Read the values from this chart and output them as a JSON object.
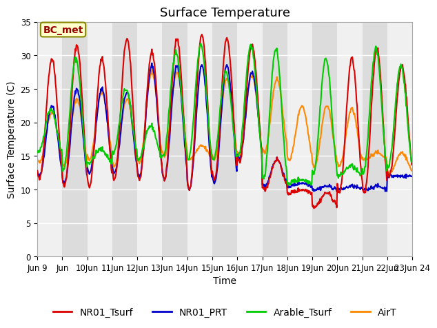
{
  "title": "Surface Temperature",
  "ylabel": "Surface Temperature (C)",
  "xlabel": "Time",
  "ylim": [
    0,
    35
  ],
  "background_color": "#ffffff",
  "plot_bg_light": "#f0f0f0",
  "plot_bg_dark": "#dcdcdc",
  "grid_color": "#ffffff",
  "annotation_text": "BC_met",
  "annotation_bg": "#ffffcc",
  "annotation_border": "#888800",
  "annotation_text_color": "#990000",
  "series": {
    "NR01_Tsurf": {
      "color": "#dd0000",
      "lw": 1.5
    },
    "NR01_PRT": {
      "color": "#0000cc",
      "lw": 1.5
    },
    "Arable_Tsurf": {
      "color": "#00cc00",
      "lw": 1.5
    },
    "AirT": {
      "color": "#ff8800",
      "lw": 1.5
    }
  },
  "x_tick_labels": [
    "Jun 9",
    "Jun 10",
    "11Jun",
    "12Jun",
    "13Jun",
    "14Jun",
    "15Jun",
    "16Jun",
    "17Jun",
    "18Jun",
    "19Jun",
    "20Jun",
    "21Jun",
    "22Jun",
    "23Jun",
    "24"
  ],
  "title_fontsize": 13,
  "axis_fontsize": 10,
  "tick_fontsize": 8.5,
  "legend_fontsize": 10,
  "n_days": 15,
  "peak_red": [
    29.5,
    31.5,
    29.5,
    32.5,
    30.5,
    32.5,
    33.0,
    32.5,
    31.5,
    14.5,
    10.0,
    9.5,
    29.5,
    31.0,
    28.5
  ],
  "base_red": [
    11.5,
    10.5,
    10.5,
    11.5,
    11.5,
    11.5,
    10.0,
    11.5,
    14.0,
    10.0,
    9.5,
    7.5,
    9.5,
    9.5,
    12.0
  ],
  "peak_blue": [
    22.5,
    25.0,
    25.0,
    24.5,
    28.5,
    28.5,
    28.5,
    28.5,
    27.5,
    14.5,
    11.0,
    10.5,
    10.5,
    10.5,
    12.0
  ],
  "base_blue": [
    12.0,
    11.0,
    12.5,
    12.5,
    12.0,
    11.5,
    10.0,
    11.0,
    14.5,
    10.5,
    10.5,
    10.0,
    10.0,
    10.0,
    12.0
  ],
  "peak_green": [
    22.0,
    29.5,
    16.0,
    25.0,
    19.5,
    30.5,
    31.5,
    27.5,
    31.5,
    31.0,
    11.5,
    29.5,
    13.5,
    31.0,
    28.5
  ],
  "base_green": [
    15.5,
    13.0,
    14.0,
    15.5,
    14.5,
    15.0,
    14.5,
    14.5,
    15.0,
    11.5,
    11.0,
    12.5,
    12.0,
    12.5,
    13.5
  ],
  "peak_orange": [
    21.5,
    23.5,
    24.5,
    23.5,
    27.5,
    27.5,
    16.5,
    26.5,
    27.0,
    26.5,
    22.5,
    22.5,
    22.0,
    15.5,
    15.5
  ],
  "base_orange": [
    14.0,
    13.5,
    14.5,
    13.5,
    14.0,
    15.0,
    14.5,
    14.5,
    15.0,
    15.5,
    14.5,
    13.5,
    13.5,
    14.5,
    12.5
  ]
}
